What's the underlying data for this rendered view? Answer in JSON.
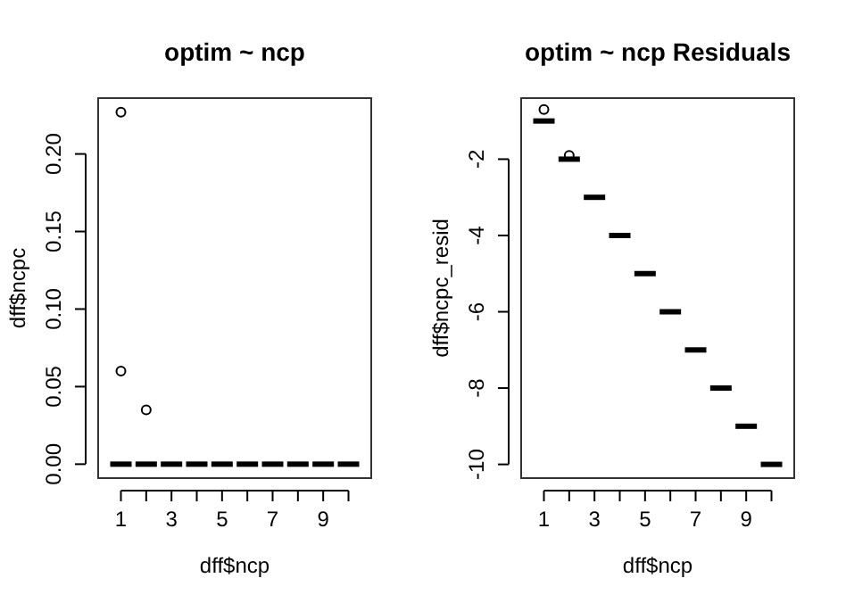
{
  "chart_data": [
    {
      "type": "box",
      "title": "optim ~ ncp",
      "xlabel": "dff$ncp",
      "ylabel": "dff$ncpc",
      "categories": [
        "1",
        null,
        "3",
        null,
        "5",
        null,
        "7",
        null,
        "9",
        null
      ],
      "boxes": [
        {
          "low": 0,
          "q1": 0,
          "median": 0,
          "q3": 0,
          "high": 0,
          "outliers": [
            0.227,
            0.06
          ]
        },
        {
          "low": 0,
          "q1": 0,
          "median": 0,
          "q3": 0,
          "high": 0,
          "outliers": [
            0.035
          ]
        },
        {
          "low": 0,
          "q1": 0,
          "median": 0,
          "q3": 0,
          "high": 0
        },
        {
          "low": 0,
          "q1": 0,
          "median": 0,
          "q3": 0,
          "high": 0
        },
        {
          "low": 0,
          "q1": 0,
          "median": 0,
          "q3": 0,
          "high": 0
        },
        {
          "low": 0,
          "q1": 0,
          "median": 0,
          "q3": 0,
          "high": 0
        },
        {
          "low": 0,
          "q1": 0,
          "median": 0,
          "q3": 0,
          "high": 0
        },
        {
          "low": 0,
          "q1": 0,
          "median": 0,
          "q3": 0,
          "high": 0
        },
        {
          "low": 0,
          "q1": 0,
          "median": 0,
          "q3": 0,
          "high": 0
        },
        {
          "low": 0,
          "q1": 0,
          "median": 0,
          "q3": 0,
          "high": 0
        }
      ],
      "ylim": [
        -0.009,
        0.236
      ],
      "yticks": [
        {
          "value": 0,
          "label": "0.00"
        },
        {
          "value": 0.05,
          "label": "0.05"
        },
        {
          "value": 0.1,
          "label": "0.10"
        },
        {
          "value": 0.15,
          "label": "0.15"
        },
        {
          "value": 0.2,
          "label": "0.20"
        }
      ]
    },
    {
      "type": "box",
      "title": "optim ~ ncp Residuals",
      "xlabel": "dff$ncp",
      "ylabel": "dff$ncpc_resid",
      "categories": [
        "1",
        null,
        "3",
        null,
        "5",
        null,
        "7",
        null,
        "9",
        null
      ],
      "boxes": [
        {
          "low": -1,
          "q1": -1,
          "median": -1,
          "q3": -1,
          "high": -1,
          "outliers": [
            -0.7
          ]
        },
        {
          "low": -2,
          "q1": -2,
          "median": -2,
          "q3": -2,
          "high": -2,
          "outliers": [
            -1.9
          ]
        },
        {
          "low": -3,
          "q1": -3,
          "median": -3,
          "q3": -3,
          "high": -3
        },
        {
          "low": -4,
          "q1": -4,
          "median": -4,
          "q3": -4,
          "high": -4
        },
        {
          "low": -5,
          "q1": -5,
          "median": -5,
          "q3": -5,
          "high": -5
        },
        {
          "low": -6,
          "q1": -6,
          "median": -6,
          "q3": -6,
          "high": -6
        },
        {
          "low": -7,
          "q1": -7,
          "median": -7,
          "q3": -7,
          "high": -7
        },
        {
          "low": -8,
          "q1": -8,
          "median": -8,
          "q3": -8,
          "high": -8
        },
        {
          "low": -9,
          "q1": -9,
          "median": -9,
          "q3": -9,
          "high": -9
        },
        {
          "low": -10,
          "q1": -10,
          "median": -10,
          "q3": -10,
          "high": -10
        }
      ],
      "ylim": [
        -10.36,
        -0.4
      ],
      "yticks": [
        -10,
        -8,
        -6,
        -4,
        -2
      ]
    }
  ]
}
